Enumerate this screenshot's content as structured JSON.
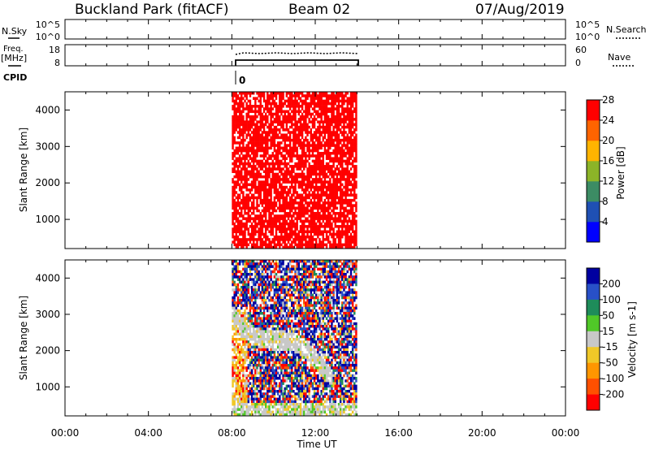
{
  "header": {
    "station": "Buckland Park (fitACF)",
    "beam": "Beam 02",
    "date": "07/Aug/2019"
  },
  "nsky_panel": {
    "left_label": "N.Sky",
    "left_ticks": [
      "10^5",
      "10^0"
    ],
    "right_ticks": [
      "10^5",
      "10^0"
    ],
    "right_label": "N.Search"
  },
  "freq_panel": {
    "left_label_1": "Freq.",
    "left_label_2": "[MHz]",
    "left_ticks": [
      "18",
      "8"
    ],
    "right_ticks": [
      "60",
      "0"
    ],
    "right_label": "Nave"
  },
  "cpid": {
    "label": "CPID",
    "value": "0"
  },
  "colors": {
    "power_fill": "#ff0000",
    "axis": "#000000"
  },
  "chart_data": [
    {
      "type": "heatmap",
      "name": "power",
      "ylabel": "Slant Range [km]",
      "yticks": [
        "1000",
        "2000",
        "3000",
        "4000"
      ],
      "ylim": [
        200,
        4500
      ],
      "xlim_hours": [
        0,
        24
      ],
      "data_span_hours": [
        8,
        14
      ],
      "dominant_value_db": 28,
      "colorbar": {
        "label": "Power [dB]",
        "ticks": [
          "4",
          "8",
          "12",
          "16",
          "20",
          "24",
          "28"
        ],
        "colors": [
          "#0000ff",
          "#1f50b4",
          "#3c8c64",
          "#8cb428",
          "#ffb400",
          "#ff6400",
          "#ff0000"
        ]
      }
    },
    {
      "type": "heatmap",
      "name": "velocity",
      "ylabel": "Slant Range [km]",
      "yticks": [
        "1000",
        "2000",
        "3000",
        "4000"
      ],
      "ylim": [
        200,
        4500
      ],
      "xlim_hours": [
        0,
        24
      ],
      "data_span_hours": [
        8,
        14
      ],
      "colorbar": {
        "label": "Velocity [m s-1]",
        "ticks": [
          "200",
          "100",
          "50",
          "15",
          "-15",
          "-50",
          "-100",
          "-200"
        ],
        "colors": [
          "#0000a0",
          "#2850c8",
          "#1e8c5a",
          "#50c828",
          "#c8c8c8",
          "#f0c828",
          "#ff9600",
          "#ff5000",
          "#ff0000"
        ]
      }
    }
  ],
  "x_axis": {
    "label": "Time UT",
    "ticks": [
      "00:00",
      "04:00",
      "08:00",
      "12:00",
      "16:00",
      "20:00",
      "00:00"
    ]
  }
}
